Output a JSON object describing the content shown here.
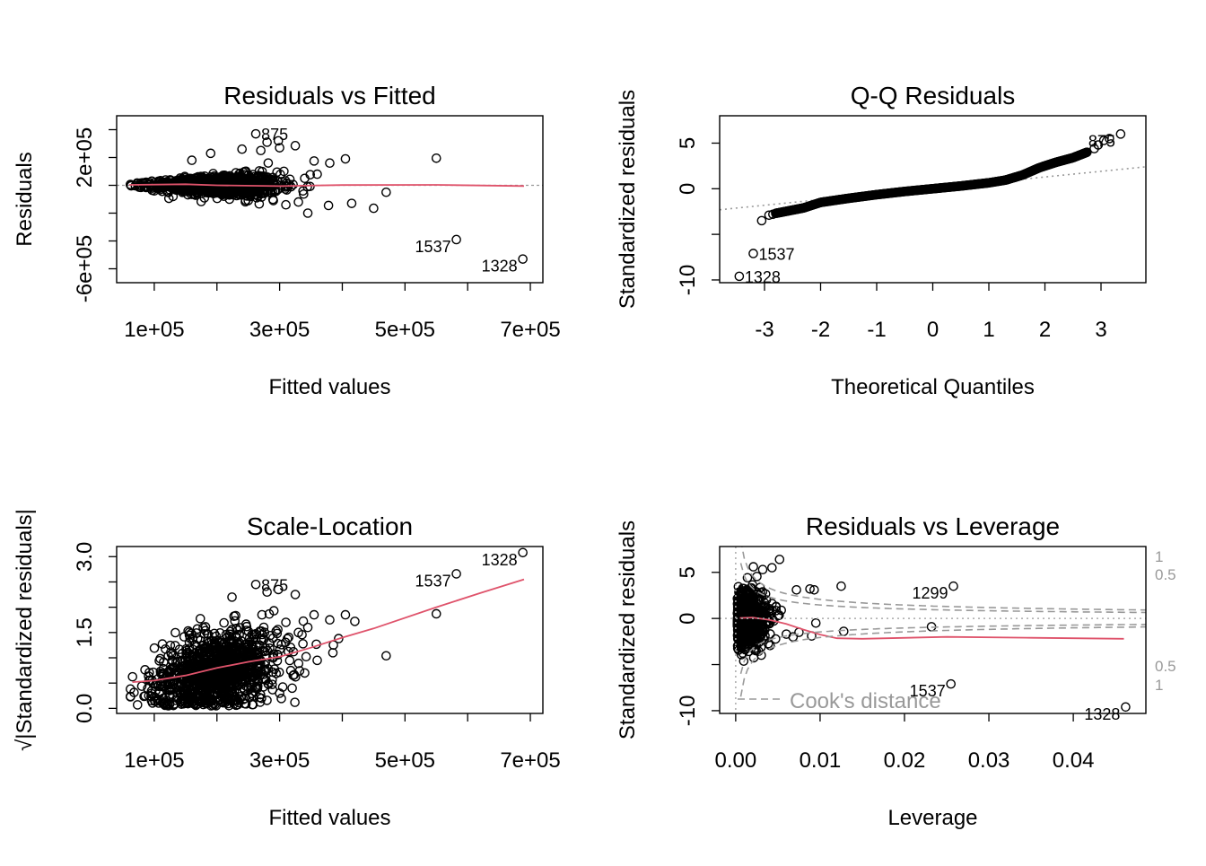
{
  "chart_data": [
    {
      "type": "scatter",
      "title": "Residuals vs Fitted",
      "xlabel": "Fitted values",
      "ylabel": "Residuals",
      "xlim": [
        40000,
        720000
      ],
      "ylim": [
        -700000,
        500000
      ],
      "x_ticks": [
        100000,
        200000,
        300000,
        400000,
        500000,
        600000,
        700000
      ],
      "x_tick_labels": [
        "1e+05",
        "3e+05",
        "5e+05",
        "7e+05"
      ],
      "x_tick_label_values": [
        100000,
        300000,
        500000,
        700000
      ],
      "y_ticks": [
        -600000,
        -400000,
        -200000,
        0,
        200000,
        400000
      ],
      "y_tick_labels": [
        "-6e+05",
        "2e+05"
      ],
      "y_tick_label_values": [
        -600000,
        200000
      ],
      "reference_line_y": 0,
      "annotations": [
        {
          "label": "875",
          "x": 262000,
          "y": 370000
        },
        {
          "label": "1537",
          "x": 582000,
          "y": -390000
        },
        {
          "label": "1328",
          "x": 688000,
          "y": -530000
        }
      ],
      "points": [
        [
          550000,
          195000
        ],
        [
          582000,
          -390000
        ],
        [
          688000,
          -530000
        ],
        [
          262000,
          370000
        ],
        [
          280000,
          310000
        ],
        [
          298000,
          320000
        ],
        [
          325000,
          285000
        ],
        [
          355000,
          175000
        ],
        [
          380000,
          160000
        ],
        [
          405000,
          190000
        ],
        [
          300000,
          270000
        ],
        [
          270000,
          250000
        ],
        [
          240000,
          260000
        ],
        [
          190000,
          230000
        ],
        [
          160000,
          180000
        ],
        [
          470000,
          -50000
        ],
        [
          450000,
          -165000
        ],
        [
          415000,
          -130000
        ],
        [
          378000,
          -145000
        ],
        [
          345000,
          -200000
        ],
        [
          330000,
          -120000
        ],
        [
          310000,
          -140000
        ],
        [
          290000,
          -110000
        ],
        [
          250000,
          -110000
        ],
        [
          220000,
          -100000
        ],
        [
          180000,
          -90000
        ],
        [
          130000,
          -80000
        ],
        [
          100000,
          -40000
        ],
        [
          340000,
          50000
        ],
        [
          360000,
          80000
        ]
      ],
      "cloud": {
        "x_center": 200000,
        "x_spread": 90000,
        "y_spread": 90000
      },
      "smooth_line": [
        [
          60000,
          3000
        ],
        [
          150000,
          8000
        ],
        [
          200000,
          0
        ],
        [
          300000,
          -6000
        ],
        [
          400000,
          2000
        ],
        [
          550000,
          3000
        ],
        [
          690000,
          -5000
        ]
      ],
      "colors": {
        "smooth": "#df536b",
        "points": "#000000",
        "reference": "#999999"
      }
    },
    {
      "type": "scatter",
      "title": "Q-Q Residuals",
      "xlabel": "Theoretical Quantiles",
      "ylabel": "Standardized residuals",
      "xlim": [
        -3.8,
        3.8
      ],
      "ylim": [
        -10.3,
        8.0
      ],
      "x_ticks": [
        -3,
        -2,
        -1,
        0,
        1,
        2,
        3
      ],
      "x_tick_labels": [
        "-3",
        "-2",
        "-1",
        "0",
        "1",
        "2",
        "3"
      ],
      "y_ticks": [
        -10,
        -5,
        0,
        5
      ],
      "y_tick_labels": [
        "-10",
        "0",
        "5"
      ],
      "y_tick_label_values": [
        -10,
        0,
        5
      ],
      "reference_line": {
        "slope": 0.62,
        "intercept": 0.05
      },
      "annotations": [
        {
          "label": "875",
          "x": 3.35,
          "y": 6.0
        },
        {
          "label": "1537",
          "x": -3.2,
          "y": -7.1
        },
        {
          "label": "1328",
          "x": -3.45,
          "y": -9.6
        }
      ],
      "points": [
        [
          -3.45,
          -9.6
        ],
        [
          -3.2,
          -7.1
        ],
        [
          -3.05,
          -3.5
        ],
        [
          -2.92,
          -2.9
        ],
        [
          -2.85,
          -2.8
        ],
        [
          3.35,
          6.0
        ],
        [
          3.15,
          5.5
        ],
        [
          3.05,
          5.3
        ],
        [
          2.95,
          4.8
        ],
        [
          2.88,
          4.4
        ]
      ],
      "curve": [
        [
          -2.8,
          -2.7
        ],
        [
          -2.3,
          -2.1
        ],
        [
          -2.0,
          -1.5
        ],
        [
          -1.5,
          -1.05
        ],
        [
          -1.0,
          -0.65
        ],
        [
          -0.5,
          -0.3
        ],
        [
          0.0,
          0.0
        ],
        [
          0.5,
          0.3
        ],
        [
          1.0,
          0.65
        ],
        [
          1.3,
          0.95
        ],
        [
          1.6,
          1.5
        ],
        [
          1.9,
          2.3
        ],
        [
          2.2,
          2.9
        ],
        [
          2.5,
          3.4
        ],
        [
          2.75,
          4.0
        ]
      ],
      "colors": {
        "points": "#000000",
        "reference": "#999999"
      }
    },
    {
      "type": "scatter",
      "title": "Scale-Location",
      "xlabel": "Fitted values",
      "ylabel": "√|Standardized residuals|",
      "xlim": [
        40000,
        720000
      ],
      "ylim": [
        -0.1,
        3.2
      ],
      "x_ticks": [
        100000,
        200000,
        300000,
        400000,
        500000,
        600000,
        700000
      ],
      "x_tick_labels": [
        "1e+05",
        "3e+05",
        "5e+05",
        "7e+05"
      ],
      "x_tick_label_values": [
        100000,
        300000,
        500000,
        700000
      ],
      "y_ticks": [
        0.0,
        0.5,
        1.0,
        1.5,
        2.0,
        2.5,
        3.0
      ],
      "y_tick_labels": [
        "0.0",
        "1.5",
        "3.0"
      ],
      "y_tick_label_values": [
        0.0,
        1.5,
        3.0
      ],
      "annotations": [
        {
          "label": "875",
          "x": 262000,
          "y": 2.45
        },
        {
          "label": "1537",
          "x": 582000,
          "y": 2.66
        },
        {
          "label": "1328",
          "x": 688000,
          "y": 3.08
        }
      ],
      "points": [
        [
          262000,
          2.45
        ],
        [
          582000,
          2.66
        ],
        [
          688000,
          3.08
        ],
        [
          550000,
          1.87
        ],
        [
          280000,
          2.3
        ],
        [
          298000,
          2.35
        ],
        [
          325000,
          2.25
        ],
        [
          355000,
          1.85
        ],
        [
          380000,
          1.75
        ],
        [
          405000,
          1.85
        ],
        [
          420000,
          1.72
        ],
        [
          470000,
          1.04
        ],
        [
          345000,
          1.6
        ],
        [
          330000,
          1.5
        ],
        [
          310000,
          1.7
        ],
        [
          385000,
          1.1
        ],
        [
          360000,
          0.95
        ],
        [
          340000,
          0.7
        ],
        [
          320000,
          0.4
        ],
        [
          300000,
          0.3
        ]
      ],
      "cloud": {
        "x_center": 200000,
        "x_spread": 90000
      },
      "smooth_line": [
        [
          65000,
          0.52
        ],
        [
          100000,
          0.55
        ],
        [
          150000,
          0.65
        ],
        [
          200000,
          0.8
        ],
        [
          250000,
          0.92
        ],
        [
          300000,
          1.02
        ],
        [
          350000,
          1.2
        ],
        [
          400000,
          1.4
        ],
        [
          450000,
          1.58
        ],
        [
          550000,
          2.0
        ],
        [
          620000,
          2.28
        ],
        [
          690000,
          2.55
        ]
      ],
      "colors": {
        "smooth": "#df536b",
        "points": "#000000"
      }
    },
    {
      "type": "scatter",
      "title": "Residuals vs Leverage",
      "xlabel": "Leverage",
      "ylabel": "Standardized residuals",
      "xlim": [
        -0.0019,
        0.0486
      ],
      "ylim": [
        -10.3,
        7.8
      ],
      "x_ticks": [
        0.0,
        0.01,
        0.02,
        0.03,
        0.04
      ],
      "x_tick_labels": [
        "0.00",
        "0.01",
        "0.02",
        "0.03",
        "0.04"
      ],
      "y_ticks": [
        -10,
        -5,
        0,
        5
      ],
      "y_tick_labels": [
        "-10",
        "0",
        "5"
      ],
      "y_tick_label_values": [
        -10,
        0,
        5
      ],
      "cooks_distance_label": "Cook's distance",
      "contour_labels": [
        {
          "label": "1",
          "side": "upper",
          "level": 1
        },
        {
          "label": "0.5",
          "side": "upper",
          "level": 0.5
        },
        {
          "label": "0.5",
          "side": "lower",
          "level": 0.5
        },
        {
          "label": "1",
          "side": "lower",
          "level": 1
        }
      ],
      "annotations": [
        {
          "label": "1299",
          "x": 0.0258,
          "y": 3.5
        },
        {
          "label": "1537",
          "x": 0.0255,
          "y": -7.1
        },
        {
          "label": "1328",
          "x": 0.0462,
          "y": -9.6
        }
      ],
      "points": [
        [
          0.0258,
          3.5
        ],
        [
          0.0255,
          -7.1
        ],
        [
          0.0462,
          -9.6
        ],
        [
          0.0232,
          -0.9
        ],
        [
          0.0125,
          3.5
        ],
        [
          0.0128,
          -1.4
        ],
        [
          0.0093,
          3.1
        ],
        [
          0.0088,
          3.2
        ],
        [
          0.0072,
          3.1
        ],
        [
          0.0052,
          6.4
        ],
        [
          0.0043,
          5.5
        ],
        [
          0.0032,
          5.3
        ],
        [
          0.0021,
          5.6
        ],
        [
          0.0095,
          -0.5
        ],
        [
          0.009,
          -1.9
        ],
        [
          0.0075,
          -1.5
        ],
        [
          0.0068,
          -2.0
        ],
        [
          0.006,
          -1.7
        ]
      ],
      "cloud": {
        "x_max": 0.0055
      },
      "smooth_line": [
        [
          0.0005,
          0.05
        ],
        [
          0.002,
          0.1
        ],
        [
          0.004,
          -0.15
        ],
        [
          0.006,
          -0.6
        ],
        [
          0.008,
          -1.2
        ],
        [
          0.01,
          -1.75
        ],
        [
          0.012,
          -2.15
        ],
        [
          0.015,
          -2.2
        ],
        [
          0.025,
          -2.0
        ],
        [
          0.035,
          -2.1
        ],
        [
          0.046,
          -2.2
        ]
      ],
      "colors": {
        "smooth": "#df536b",
        "points": "#000000",
        "contour": "#999999"
      }
    }
  ]
}
